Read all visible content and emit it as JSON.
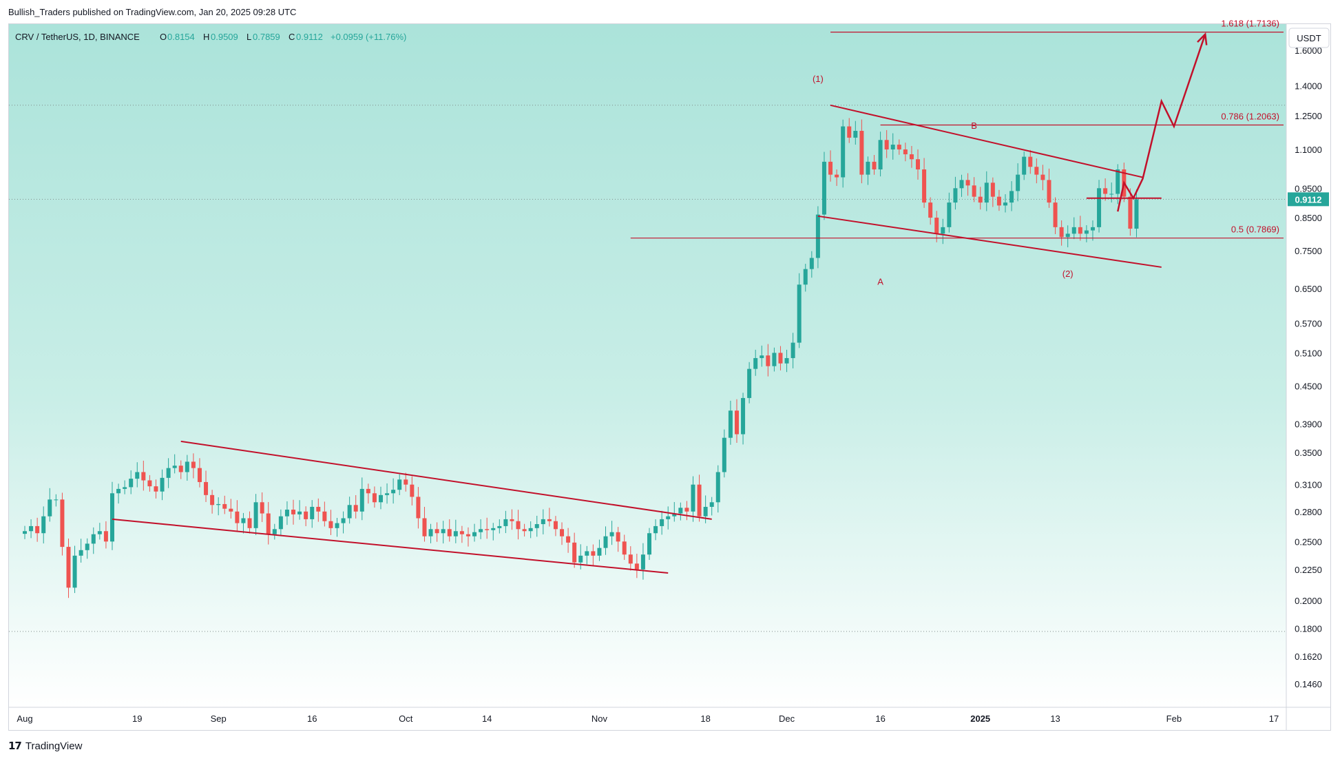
{
  "header": {
    "published": "Bullish_Traders published on TradingView.com, Jan 20, 2025 09:28 UTC"
  },
  "footer": {
    "brand": "TradingView"
  },
  "colors": {
    "up": "#26a69a",
    "down": "#ef5350",
    "annotation": "#c2102a",
    "bg_top": "#abe3da",
    "bg_bottom": "#ffffff"
  },
  "chart_data": {
    "type": "candlestick",
    "symbol": "CRV / TetherUS, 1D, BINANCE",
    "ohlc": {
      "O": "0.8154",
      "H": "0.9509",
      "L": "0.7859",
      "C": "0.9112",
      "change": "+0.0959 (+11.76%)"
    },
    "last_price": "0.9112",
    "currency": "USDT",
    "scale": "log",
    "ylim": [
      0.13,
      1.95
    ],
    "y_ticks": [
      "1.6000",
      "1.4000",
      "1.2500",
      "1.1000",
      "0.9500",
      "0.8500",
      "0.7500",
      "0.6500",
      "0.5700",
      "0.5100",
      "0.4500",
      "0.3900",
      "0.3500",
      "0.3100",
      "0.2800",
      "0.2500",
      "0.2250",
      "0.2000",
      "0.1800",
      "0.1620",
      "0.1460"
    ],
    "x_ticks": [
      {
        "label": "Aug",
        "day": 0,
        "bold": false
      },
      {
        "label": "19",
        "day": 18,
        "bold": false
      },
      {
        "label": "Sep",
        "day": 31,
        "bold": false
      },
      {
        "label": "16",
        "day": 46,
        "bold": false
      },
      {
        "label": "Oct",
        "day": 61,
        "bold": false
      },
      {
        "label": "14",
        "day": 74,
        "bold": false
      },
      {
        "label": "Nov",
        "day": 92,
        "bold": false
      },
      {
        "label": "18",
        "day": 109,
        "bold": false
      },
      {
        "label": "Dec",
        "day": 122,
        "bold": false
      },
      {
        "label": "16",
        "day": 137,
        "bold": false
      },
      {
        "label": "2025",
        "day": 153,
        "bold": true
      },
      {
        "label": "13",
        "day": 165,
        "bold": false
      },
      {
        "label": "Feb",
        "day": 184,
        "bold": false
      },
      {
        "label": "17",
        "day": 200,
        "bold": false
      }
    ],
    "closes": [
      0.26,
      0.265,
      0.258,
      0.275,
      0.293,
      0.293,
      0.245,
      0.21,
      0.237,
      0.242,
      0.248,
      0.257,
      0.26,
      0.25,
      0.3,
      0.305,
      0.307,
      0.317,
      0.325,
      0.315,
      0.308,
      0.302,
      0.318,
      0.33,
      0.333,
      0.325,
      0.338,
      0.33,
      0.313,
      0.298,
      0.287,
      0.288,
      0.283,
      0.28,
      0.268,
      0.273,
      0.263,
      0.29,
      0.278,
      0.257,
      0.262,
      0.275,
      0.282,
      0.277,
      0.28,
      0.272,
      0.285,
      0.28,
      0.27,
      0.263,
      0.268,
      0.273,
      0.287,
      0.28,
      0.305,
      0.3,
      0.29,
      0.298,
      0.3,
      0.304,
      0.316,
      0.31,
      0.296,
      0.273,
      0.255,
      0.262,
      0.258,
      0.262,
      0.255,
      0.26,
      0.257,
      0.255,
      0.259,
      0.262,
      0.261,
      0.263,
      0.265,
      0.272,
      0.27,
      0.262,
      0.26,
      0.263,
      0.267,
      0.272,
      0.27,
      0.262,
      0.255,
      0.249,
      0.231,
      0.237,
      0.241,
      0.237,
      0.244,
      0.255,
      0.259,
      0.25,
      0.238,
      0.23,
      0.225,
      0.238,
      0.258,
      0.265,
      0.272,
      0.275,
      0.278,
      0.284,
      0.28,
      0.31,
      0.275,
      0.285,
      0.29,
      0.325,
      0.37,
      0.41,
      0.375,
      0.43,
      0.48,
      0.5,
      0.505,
      0.485,
      0.51,
      0.49,
      0.5,
      0.53,
      0.66,
      0.7,
      0.73,
      0.86,
      1.05,
      1.0,
      0.99,
      1.2,
      1.15,
      1.18,
      1.0,
      1.05,
      1.02,
      1.14,
      1.1,
      1.12,
      1.1,
      1.08,
      1.06,
      1.02,
      0.9,
      0.85,
      0.8,
      0.82,
      0.9,
      0.95,
      0.98,
      0.96,
      0.92,
      0.9,
      0.97,
      0.92,
      0.89,
      0.9,
      0.94,
      1.0,
      1.07,
      1.03,
      1.0,
      0.98,
      0.9,
      0.82,
      0.79,
      0.8,
      0.82,
      0.8,
      0.81,
      0.82,
      0.95,
      0.93,
      0.93,
      1.02,
      0.92,
      0.8154,
      0.9112
    ],
    "wave_labels": [
      {
        "text": "(1)",
        "day": 127,
        "price": 1.42
      },
      {
        "text": "B",
        "day": 152,
        "price": 1.19
      },
      {
        "text": "A",
        "day": 137,
        "price": 0.66
      },
      {
        "text": "(2)",
        "day": 167,
        "price": 0.68
      }
    ],
    "fib_levels": [
      {
        "label": "1.618 (1.7136)",
        "price": 1.7136,
        "from_day": 129
      },
      {
        "label": "0.786 (1.2063)",
        "price": 1.2063,
        "from_day": 137
      },
      {
        "label": "0.5 (0.7869)",
        "price": 0.7869,
        "from_day": 97
      }
    ],
    "dotted_levels": [
      1.3,
      0.9112,
      0.178
    ],
    "channels": [
      {
        "name": "lower-channel-top",
        "d1": 25,
        "p1": 0.365,
        "d2": 110,
        "p2": 0.272
      },
      {
        "name": "lower-channel-bottom",
        "d1": 14,
        "p1": 0.272,
        "d2": 103,
        "p2": 0.222
      },
      {
        "name": "upper-channel-top",
        "d1": 129,
        "p1": 1.3,
        "d2": 179,
        "p2": 0.99
      },
      {
        "name": "upper-channel-bottom",
        "d1": 127,
        "p1": 0.855,
        "d2": 182,
        "p2": 0.705
      }
    ],
    "short_resistance": {
      "d1": 170,
      "d2": 182,
      "price": 0.915
    },
    "projection_path": [
      {
        "day": 175,
        "price": 0.87
      },
      {
        "day": 176,
        "price": 0.97
      },
      {
        "day": 177.5,
        "price": 0.915
      },
      {
        "day": 179,
        "price": 0.985
      },
      {
        "day": 182,
        "price": 1.32
      },
      {
        "day": 184,
        "price": 1.2
      },
      {
        "day": 189,
        "price": 1.7
      }
    ]
  }
}
